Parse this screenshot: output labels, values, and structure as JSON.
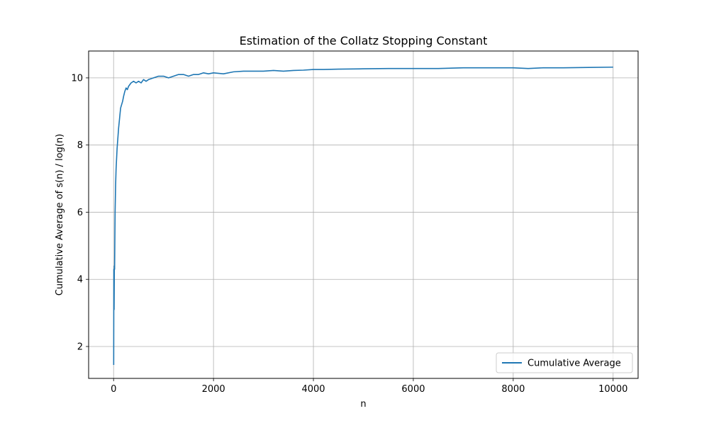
{
  "chart_data": {
    "type": "line",
    "title": "Estimation of the Collatz Stopping Constant",
    "xlabel": "n",
    "ylabel": "Cumulative Average of s(n) / log(n)",
    "xlim": [
      -500,
      10500
    ],
    "ylim": [
      1.05,
      10.8
    ],
    "xticks": [
      0,
      2000,
      4000,
      6000,
      8000,
      10000
    ],
    "yticks": [
      2,
      4,
      6,
      8,
      10
    ],
    "xtick_labels": [
      "0",
      "2000",
      "4000",
      "6000",
      "8000",
      "10000"
    ],
    "ytick_labels": [
      "2",
      "4",
      "6",
      "8",
      "10"
    ],
    "grid": true,
    "legend_position": "lower-right",
    "series": [
      {
        "name": "Cumulative Average",
        "color": "#1f77b4",
        "x": [
          2,
          5,
          10,
          15,
          20,
          25,
          30,
          40,
          50,
          60,
          70,
          80,
          90,
          100,
          120,
          140,
          160,
          180,
          200,
          225,
          250,
          275,
          300,
          350,
          400,
          450,
          500,
          550,
          600,
          650,
          700,
          800,
          900,
          1000,
          1100,
          1200,
          1300,
          1400,
          1500,
          1600,
          1700,
          1800,
          1900,
          2000,
          2200,
          2400,
          2600,
          2800,
          3000,
          3200,
          3400,
          3600,
          3800,
          4000,
          4200,
          4500,
          5000,
          5500,
          6000,
          6500,
          7000,
          7500,
          8000,
          8300,
          8600,
          9000,
          9500,
          10000
        ],
        "y": [
          1.45,
          4.3,
          3.1,
          4.4,
          4.3,
          5.2,
          6.0,
          6.8,
          7.3,
          7.6,
          7.9,
          8.1,
          8.3,
          8.5,
          8.8,
          9.1,
          9.2,
          9.3,
          9.45,
          9.6,
          9.7,
          9.65,
          9.75,
          9.85,
          9.9,
          9.85,
          9.9,
          9.85,
          9.95,
          9.9,
          9.95,
          10.0,
          10.05,
          10.05,
          10.0,
          10.05,
          10.1,
          10.1,
          10.05,
          10.1,
          10.1,
          10.15,
          10.12,
          10.15,
          10.12,
          10.18,
          10.2,
          10.2,
          10.2,
          10.22,
          10.2,
          10.22,
          10.23,
          10.25,
          10.25,
          10.26,
          10.27,
          10.28,
          10.28,
          10.28,
          10.3,
          10.3,
          10.3,
          10.28,
          10.3,
          10.3,
          10.31,
          10.32
        ]
      }
    ]
  }
}
